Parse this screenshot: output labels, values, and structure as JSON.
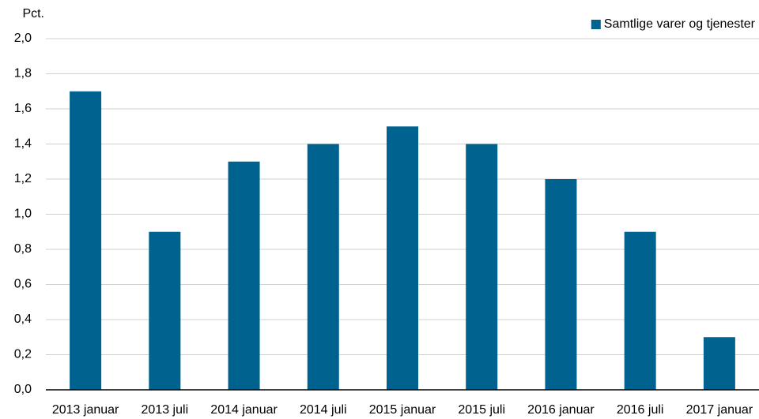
{
  "chart_data": {
    "type": "bar",
    "y_label": "Pct.",
    "categories": [
      "2013 januar",
      "2013 juli",
      "2014 januar",
      "2014 juli",
      "2015 januar",
      "2015 juli",
      "2016 januar",
      "2016 juli",
      "2017 januar"
    ],
    "series": [
      {
        "name": "Samtlige varer og tjenester",
        "color": "#00628e",
        "values": [
          1.7,
          0.9,
          1.3,
          1.4,
          1.5,
          1.4,
          1.2,
          0.9,
          0.3
        ]
      }
    ],
    "ylim": [
      0,
      2.0
    ],
    "yticks": [
      {
        "value": 0,
        "label": "0,0"
      },
      {
        "value": 0.2,
        "label": "0,2"
      },
      {
        "value": 0.4,
        "label": "0,4"
      },
      {
        "value": 0.6,
        "label": "0,6"
      },
      {
        "value": 0.8,
        "label": "0,8"
      },
      {
        "value": 1.0,
        "label": "1,0"
      },
      {
        "value": 1.2,
        "label": "1,2"
      },
      {
        "value": 1.4,
        "label": "1,4"
      },
      {
        "value": 1.6,
        "label": "1,6"
      },
      {
        "value": 1.8,
        "label": "1,8"
      },
      {
        "value": 2.0,
        "label": "2,0"
      }
    ],
    "grid": true,
    "legend": "upper right"
  }
}
